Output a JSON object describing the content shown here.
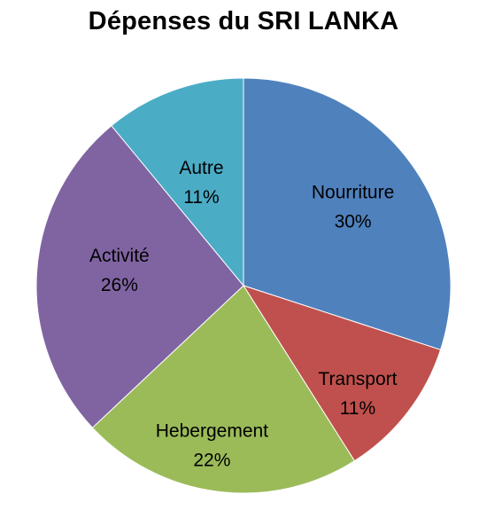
{
  "chart_data": {
    "type": "pie",
    "title": "Dépenses du SRI LANKA",
    "categories": [
      "Nourriture",
      "Transport",
      "Hebergement",
      "Activité",
      "Autre"
    ],
    "values": [
      30,
      11,
      22,
      26,
      11
    ],
    "percent_labels": [
      "30%",
      "11%",
      "22%",
      "26%",
      "11%"
    ],
    "colors": [
      "#4F81BD",
      "#C0504D",
      "#9BBB59",
      "#8064A2",
      "#4BACC6"
    ],
    "start_angle": "12 o'clock",
    "direction": "clockwise",
    "legend": "none",
    "data_labels": "category-and-percent-inside"
  }
}
